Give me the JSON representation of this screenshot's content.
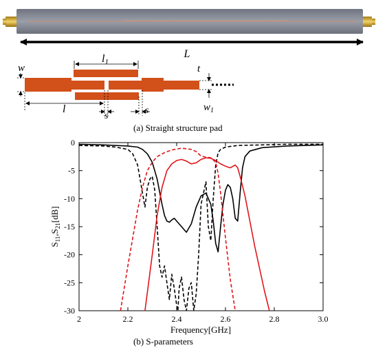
{
  "figure": {
    "photo_label_L": "L",
    "pad_labels": {
      "w": "w",
      "l1": "l",
      "l1_sub": "1",
      "L": "L",
      "t": "t",
      "w1": "w",
      "w1_sub": "1",
      "l": "l",
      "s_a": "s",
      "s_b": "s"
    },
    "caption_a": "(a)   Straight structure pad",
    "caption_b": "(b)   S-parameters",
    "colors": {
      "copper": "#d2501a",
      "board": "#8a8e99",
      "trace_black": "#000000",
      "trace_red": "#e0141a"
    }
  },
  "chart_data": {
    "type": "line",
    "title": "",
    "xlabel": "Frequency[GHz]",
    "ylabel_main": "S",
    "ylabel_sub1": "11",
    "ylabel_mid": ",S",
    "ylabel_sub2": "21",
    "ylabel_tail": "[dB]",
    "xlim": [
      2.0,
      3.0
    ],
    "ylim": [
      -30,
      0
    ],
    "xticks": [
      2.0,
      2.2,
      2.4,
      2.6,
      2.8,
      3.0
    ],
    "xtick_labels": [
      "2",
      "2.2",
      "2.4",
      "2.6",
      "2.8",
      "3.0"
    ],
    "yticks": [
      0,
      -5,
      -10,
      -15,
      -20,
      -25,
      -30
    ],
    "ytick_labels": [
      "0",
      "-5",
      "-10",
      "-15",
      "-20",
      "-25",
      "-30"
    ],
    "grid": false,
    "series": [
      {
        "color": "#000000",
        "dash": "solid",
        "x": [
          2.0,
          2.1,
          2.2,
          2.24,
          2.26,
          2.28,
          2.3,
          2.32,
          2.34,
          2.35,
          2.36,
          2.37,
          2.38,
          2.39,
          2.4,
          2.42,
          2.44,
          2.46,
          2.48,
          2.5,
          2.52,
          2.54,
          2.55,
          2.56,
          2.57,
          2.58,
          2.59,
          2.6,
          2.61,
          2.62,
          2.63,
          2.64,
          2.65,
          2.66,
          2.67,
          2.68,
          2.7,
          2.75,
          2.85,
          3.0
        ],
        "y": [
          -0.3,
          -0.4,
          -0.6,
          -0.8,
          -1.2,
          -2.0,
          -3.5,
          -6.5,
          -11.0,
          -13.0,
          -14.0,
          -14.2,
          -13.8,
          -13.5,
          -14.0,
          -15.0,
          -16.0,
          -14.5,
          -11.5,
          -9.5,
          -9.0,
          -11.0,
          -14.0,
          -18.0,
          -19.5,
          -15.0,
          -11.0,
          -8.5,
          -7.5,
          -8.0,
          -10.0,
          -13.5,
          -14.0,
          -9.0,
          -4.5,
          -2.5,
          -1.5,
          -0.9,
          -0.6,
          -0.4
        ]
      },
      {
        "color": "#000000",
        "dash": "dashed",
        "x": [
          2.0,
          2.1,
          2.15,
          2.2,
          2.22,
          2.24,
          2.26,
          2.27,
          2.28,
          2.29,
          2.3,
          2.31,
          2.32,
          2.33,
          2.34,
          2.35,
          2.36,
          2.37,
          2.38,
          2.39,
          2.4,
          2.405,
          2.41,
          2.42,
          2.43,
          2.44,
          2.45,
          2.46,
          2.47,
          2.48,
          2.49,
          2.5,
          2.52,
          2.53,
          2.54,
          2.55,
          2.56,
          2.57,
          2.58,
          2.6,
          2.65,
          2.75,
          2.85,
          3.0
        ],
        "y": [
          -0.5,
          -0.6,
          -0.8,
          -1.2,
          -2.0,
          -4.0,
          -9.0,
          -11.5,
          -8.0,
          -6.5,
          -6.0,
          -8.5,
          -15.0,
          -22.0,
          -24.0,
          -22.0,
          -25.0,
          -28.0,
          -23.5,
          -26.0,
          -29.0,
          -30.0,
          -26.0,
          -24.0,
          -28.0,
          -30.0,
          -26.0,
          -25.0,
          -30.0,
          -27.0,
          -20.0,
          -11.0,
          -7.0,
          -15.0,
          -17.5,
          -10.0,
          -4.0,
          -1.8,
          -1.2,
          -0.8,
          -0.5,
          -0.4,
          -0.3,
          -0.3
        ]
      },
      {
        "color": "#e0141a",
        "dash": "solid",
        "x": [
          2.27,
          2.3,
          2.32,
          2.34,
          2.36,
          2.38,
          2.4,
          2.42,
          2.44,
          2.46,
          2.48,
          2.5,
          2.52,
          2.54,
          2.56,
          2.58,
          2.6,
          2.62,
          2.64,
          2.65,
          2.66,
          2.68,
          2.7,
          2.72,
          2.74,
          2.76,
          2.78
        ],
        "y": [
          -30.0,
          -20.0,
          -13.0,
          -8.0,
          -5.0,
          -3.8,
          -3.2,
          -3.0,
          -3.3,
          -3.8,
          -3.6,
          -3.0,
          -2.7,
          -2.8,
          -3.2,
          -3.8,
          -4.2,
          -4.5,
          -4.0,
          -4.5,
          -6.0,
          -9.5,
          -14.0,
          -18.5,
          -22.5,
          -26.5,
          -30.0
        ]
      },
      {
        "color": "#e0141a",
        "dash": "dashed",
        "x": [
          2.17,
          2.2,
          2.22,
          2.24,
          2.26,
          2.28,
          2.3,
          2.32,
          2.35,
          2.38,
          2.42,
          2.46,
          2.48,
          2.5,
          2.52,
          2.54,
          2.56,
          2.57,
          2.58,
          2.6,
          2.62,
          2.64
        ],
        "y": [
          -30.0,
          -22.0,
          -17.0,
          -12.0,
          -8.0,
          -5.0,
          -3.5,
          -2.5,
          -1.8,
          -1.3,
          -1.0,
          -1.2,
          -1.6,
          -2.4,
          -2.6,
          -2.7,
          -3.5,
          -5.5,
          -9.0,
          -17.0,
          -24.5,
          -30.0
        ]
      }
    ]
  }
}
